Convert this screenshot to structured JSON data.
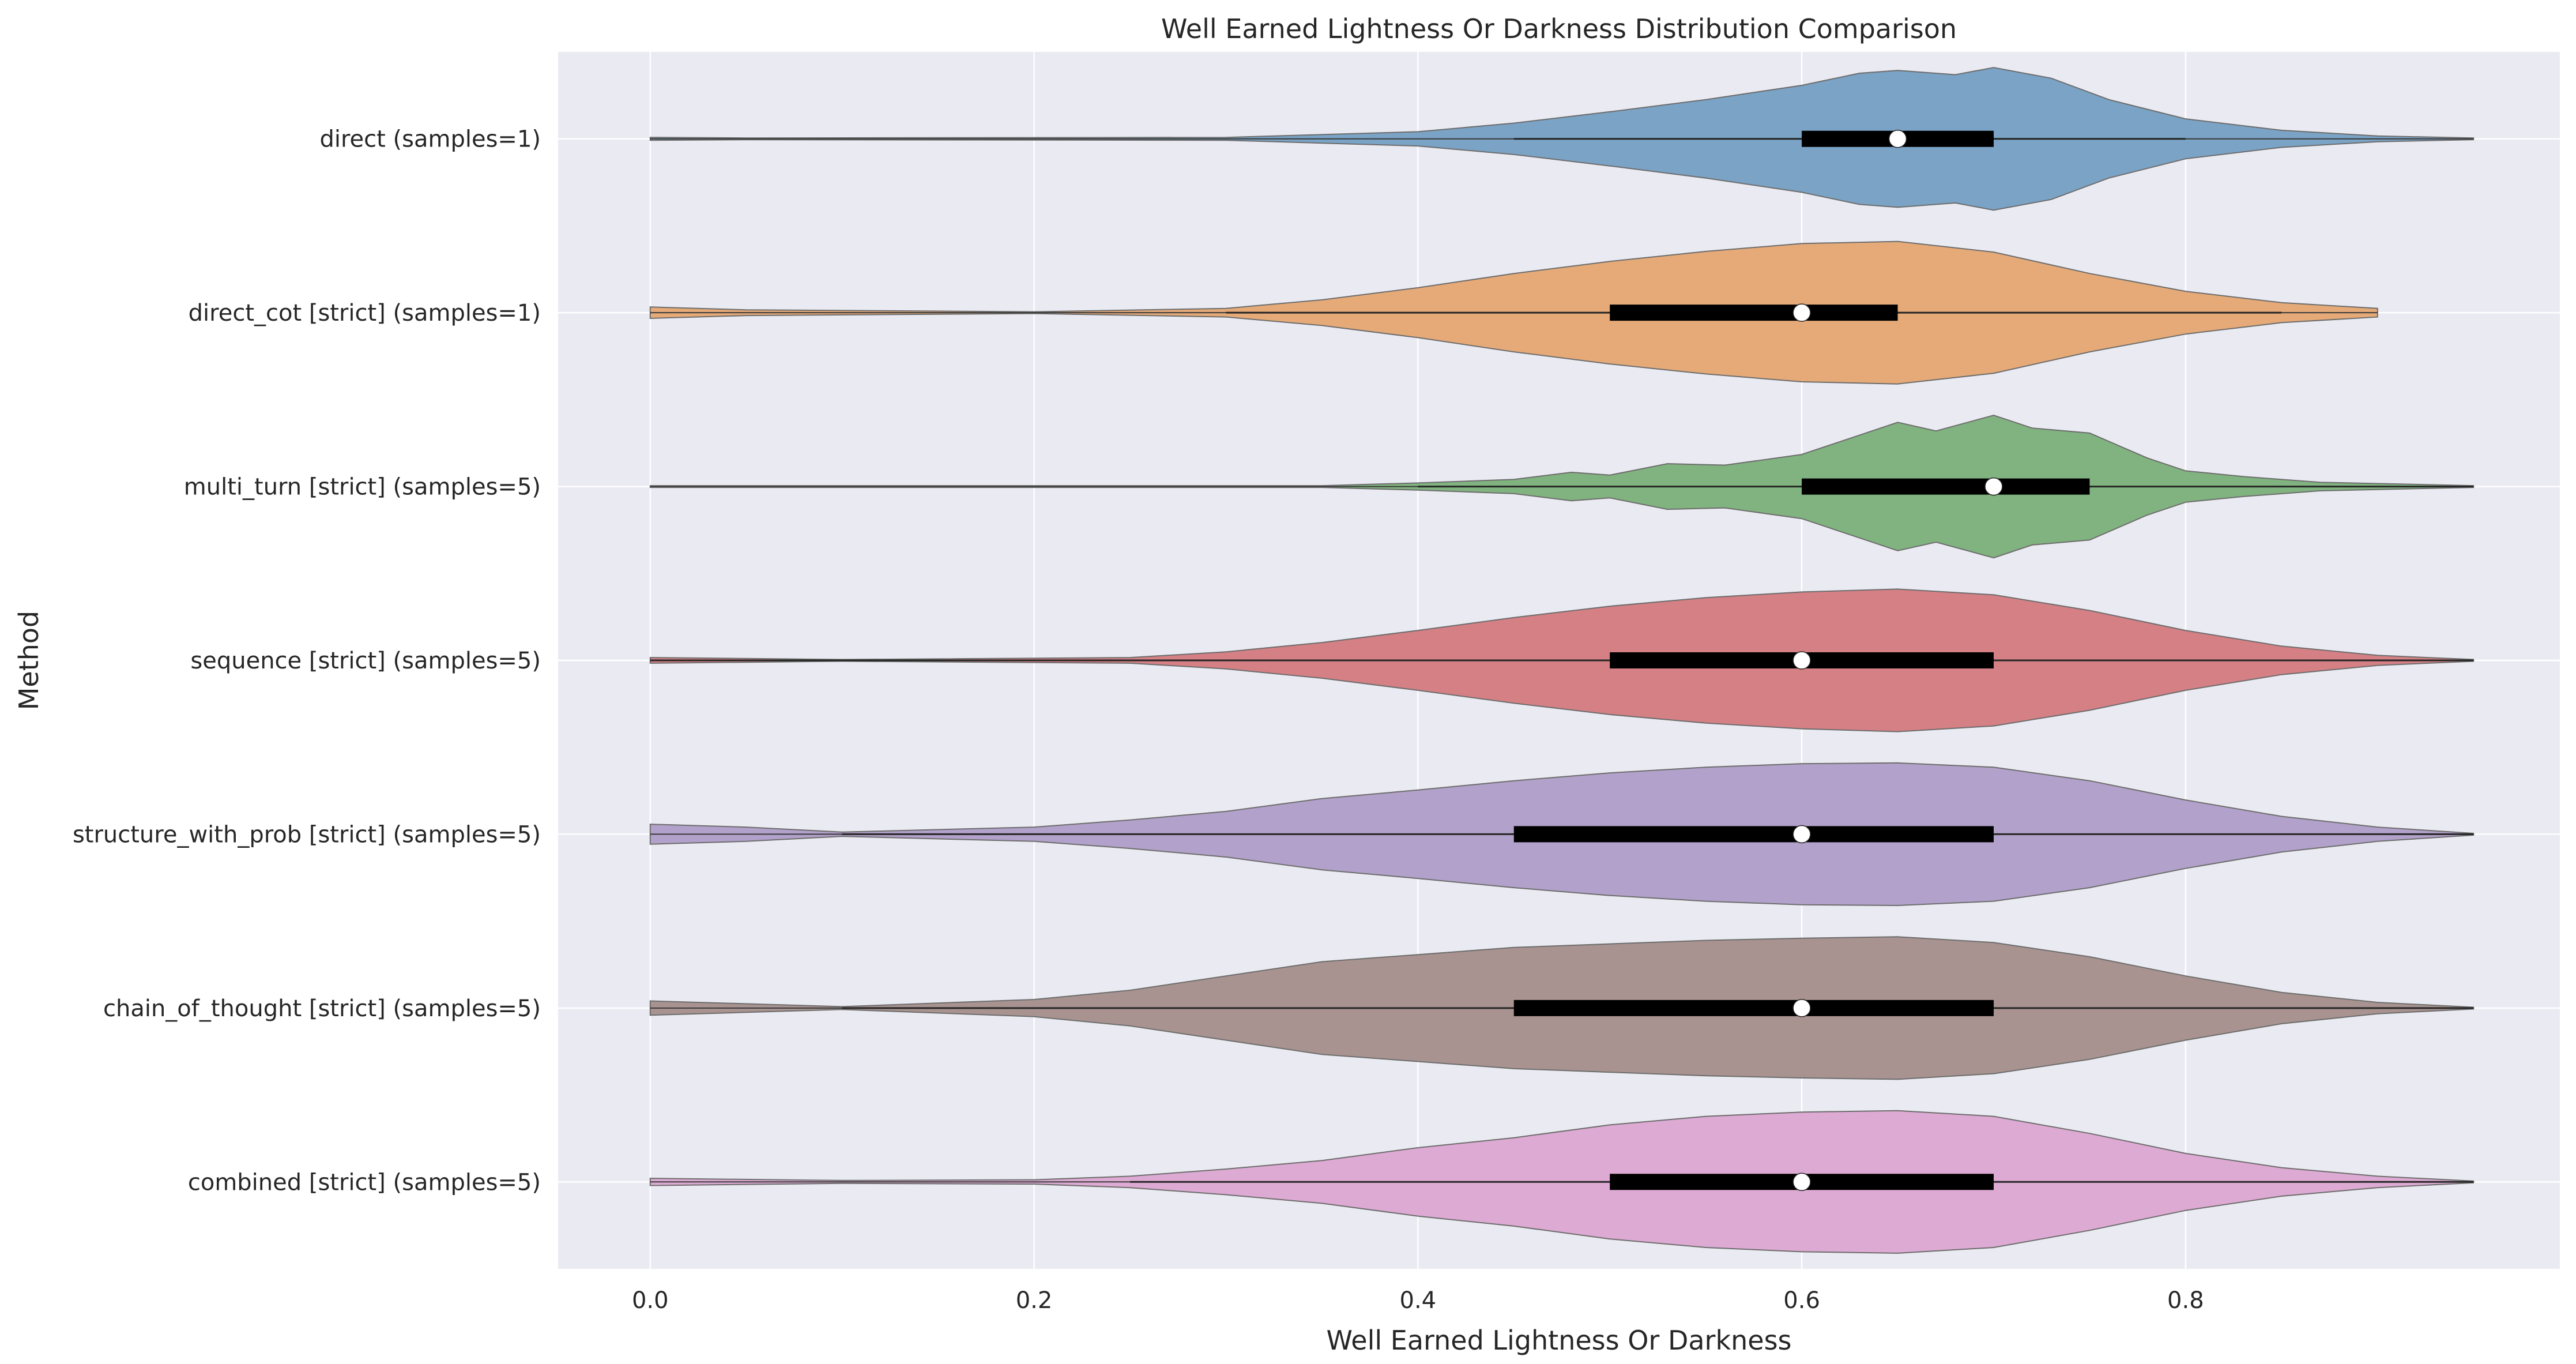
{
  "chart_data": {
    "type": "violin",
    "title": "Well Earned Lightness Or Darkness Distribution Comparison",
    "xlabel": "Well Earned Lightness Or Darkness",
    "ylabel": "Method",
    "xlim": [
      -0.048,
      0.995
    ],
    "xticks": [
      0.0,
      0.2,
      0.4,
      0.6,
      0.8
    ],
    "xtick_labels": [
      "0.0",
      "0.2",
      "0.4",
      "0.6",
      "0.8"
    ],
    "orientation": "horizontal",
    "grid": true,
    "series": [
      {
        "category": "direct (samples=1)",
        "color": "#7aa3c5",
        "min": 0.0,
        "max": 0.95,
        "whisker_low": 0.45,
        "whisker_high": 0.8,
        "q1": 0.6,
        "median": 0.65,
        "q3": 0.7,
        "density": [
          [
            0.0,
            0.02
          ],
          [
            0.05,
            0.0
          ],
          [
            0.3,
            0.02
          ],
          [
            0.4,
            0.1
          ],
          [
            0.45,
            0.22
          ],
          [
            0.5,
            0.38
          ],
          [
            0.55,
            0.55
          ],
          [
            0.6,
            0.75
          ],
          [
            0.63,
            0.92
          ],
          [
            0.65,
            0.96
          ],
          [
            0.68,
            0.9
          ],
          [
            0.7,
            1.0
          ],
          [
            0.73,
            0.85
          ],
          [
            0.76,
            0.55
          ],
          [
            0.8,
            0.28
          ],
          [
            0.85,
            0.12
          ],
          [
            0.9,
            0.04
          ],
          [
            0.95,
            0.0
          ]
        ]
      },
      {
        "category": "direct_cot [strict] (samples=1)",
        "color": "#e5aa78",
        "min": 0.0,
        "max": 0.9,
        "whisker_low": 0.3,
        "whisker_high": 0.85,
        "q1": 0.5,
        "median": 0.6,
        "q3": 0.65,
        "density": [
          [
            0.0,
            0.08
          ],
          [
            0.05,
            0.04
          ],
          [
            0.2,
            0.01
          ],
          [
            0.3,
            0.06
          ],
          [
            0.35,
            0.18
          ],
          [
            0.4,
            0.35
          ],
          [
            0.45,
            0.55
          ],
          [
            0.5,
            0.72
          ],
          [
            0.55,
            0.86
          ],
          [
            0.6,
            0.97
          ],
          [
            0.65,
            1.0
          ],
          [
            0.7,
            0.85
          ],
          [
            0.75,
            0.55
          ],
          [
            0.8,
            0.3
          ],
          [
            0.85,
            0.14
          ],
          [
            0.9,
            0.06
          ]
        ]
      },
      {
        "category": "multi_turn [strict] (samples=5)",
        "color": "#80b37f",
        "min": 0.0,
        "max": 0.95,
        "whisker_low": 0.4,
        "whisker_high": 0.95,
        "q1": 0.6,
        "median": 0.7,
        "q3": 0.75,
        "density": [
          [
            0.0,
            0.0
          ],
          [
            0.35,
            0.01
          ],
          [
            0.4,
            0.05
          ],
          [
            0.45,
            0.1
          ],
          [
            0.48,
            0.2
          ],
          [
            0.5,
            0.16
          ],
          [
            0.53,
            0.32
          ],
          [
            0.56,
            0.3
          ],
          [
            0.6,
            0.45
          ],
          [
            0.63,
            0.72
          ],
          [
            0.65,
            0.9
          ],
          [
            0.67,
            0.78
          ],
          [
            0.7,
            1.0
          ],
          [
            0.72,
            0.82
          ],
          [
            0.75,
            0.75
          ],
          [
            0.78,
            0.4
          ],
          [
            0.8,
            0.22
          ],
          [
            0.83,
            0.14
          ],
          [
            0.87,
            0.06
          ],
          [
            0.95,
            0.0
          ]
        ]
      },
      {
        "category": "sequence [strict] (samples=5)",
        "color": "#d48085",
        "min": 0.0,
        "max": 0.95,
        "whisker_low": 0.0,
        "whisker_high": 0.95,
        "q1": 0.5,
        "median": 0.6,
        "q3": 0.7,
        "density": [
          [
            0.0,
            0.04
          ],
          [
            0.1,
            0.0
          ],
          [
            0.25,
            0.04
          ],
          [
            0.3,
            0.12
          ],
          [
            0.35,
            0.25
          ],
          [
            0.4,
            0.42
          ],
          [
            0.45,
            0.6
          ],
          [
            0.5,
            0.76
          ],
          [
            0.55,
            0.88
          ],
          [
            0.6,
            0.96
          ],
          [
            0.65,
            1.0
          ],
          [
            0.7,
            0.92
          ],
          [
            0.75,
            0.7
          ],
          [
            0.8,
            0.42
          ],
          [
            0.85,
            0.2
          ],
          [
            0.9,
            0.07
          ],
          [
            0.95,
            0.0
          ]
        ]
      },
      {
        "category": "structure_with_prob [strict] (samples=5)",
        "color": "#b2a1ca",
        "min": 0.0,
        "max": 0.95,
        "whisker_low": 0.1,
        "whisker_high": 0.95,
        "q1": 0.45,
        "median": 0.6,
        "q3": 0.7,
        "density": [
          [
            0.0,
            0.14
          ],
          [
            0.05,
            0.1
          ],
          [
            0.1,
            0.03
          ],
          [
            0.2,
            0.1
          ],
          [
            0.25,
            0.2
          ],
          [
            0.3,
            0.32
          ],
          [
            0.35,
            0.5
          ],
          [
            0.4,
            0.62
          ],
          [
            0.45,
            0.75
          ],
          [
            0.5,
            0.86
          ],
          [
            0.55,
            0.94
          ],
          [
            0.6,
            0.99
          ],
          [
            0.65,
            1.0
          ],
          [
            0.7,
            0.94
          ],
          [
            0.75,
            0.75
          ],
          [
            0.8,
            0.48
          ],
          [
            0.85,
            0.25
          ],
          [
            0.9,
            0.1
          ],
          [
            0.95,
            0.0
          ]
        ]
      },
      {
        "category": "chain_of_thought [strict] (samples=5)",
        "color": "#a89390",
        "min": 0.0,
        "max": 0.95,
        "whisker_low": 0.1,
        "whisker_high": 0.95,
        "q1": 0.45,
        "median": 0.6,
        "q3": 0.7,
        "density": [
          [
            0.0,
            0.1
          ],
          [
            0.05,
            0.06
          ],
          [
            0.1,
            0.02
          ],
          [
            0.2,
            0.12
          ],
          [
            0.25,
            0.25
          ],
          [
            0.3,
            0.45
          ],
          [
            0.35,
            0.65
          ],
          [
            0.4,
            0.75
          ],
          [
            0.45,
            0.85
          ],
          [
            0.5,
            0.9
          ],
          [
            0.55,
            0.95
          ],
          [
            0.6,
            0.98
          ],
          [
            0.65,
            1.0
          ],
          [
            0.7,
            0.92
          ],
          [
            0.75,
            0.72
          ],
          [
            0.8,
            0.45
          ],
          [
            0.85,
            0.22
          ],
          [
            0.9,
            0.08
          ],
          [
            0.95,
            0.0
          ]
        ]
      },
      {
        "category": "combined [strict] (samples=5)",
        "color": "#ddaad3",
        "min": 0.0,
        "max": 0.95,
        "whisker_low": 0.25,
        "whisker_high": 0.95,
        "q1": 0.5,
        "median": 0.6,
        "q3": 0.7,
        "density": [
          [
            0.0,
            0.05
          ],
          [
            0.1,
            0.02
          ],
          [
            0.2,
            0.03
          ],
          [
            0.25,
            0.08
          ],
          [
            0.3,
            0.18
          ],
          [
            0.35,
            0.3
          ],
          [
            0.4,
            0.48
          ],
          [
            0.45,
            0.62
          ],
          [
            0.5,
            0.8
          ],
          [
            0.55,
            0.92
          ],
          [
            0.6,
            0.98
          ],
          [
            0.65,
            1.0
          ],
          [
            0.7,
            0.92
          ],
          [
            0.75,
            0.68
          ],
          [
            0.8,
            0.4
          ],
          [
            0.85,
            0.2
          ],
          [
            0.9,
            0.08
          ],
          [
            0.95,
            0.0
          ]
        ]
      }
    ]
  }
}
